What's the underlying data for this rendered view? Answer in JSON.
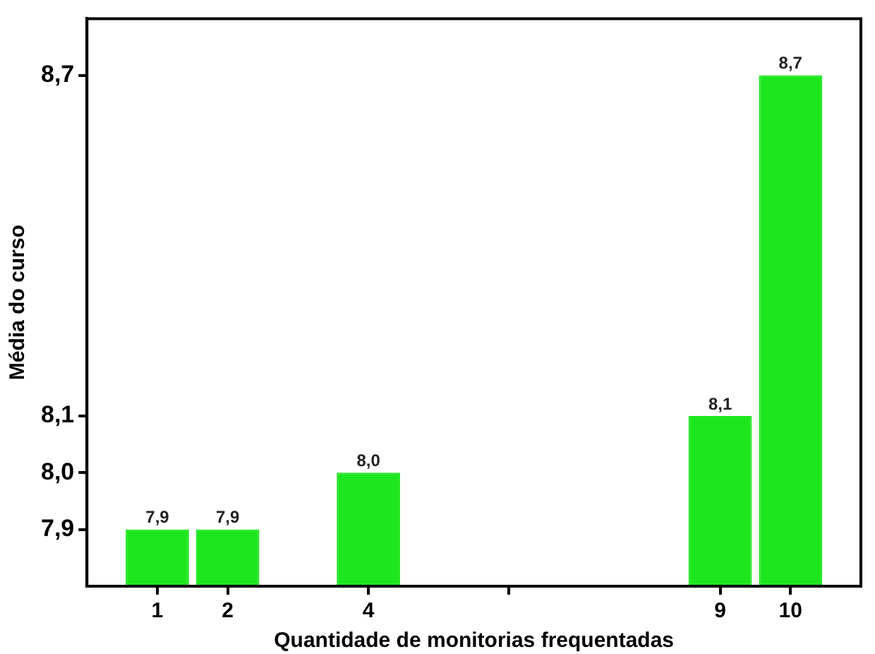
{
  "chart_data": {
    "type": "bar",
    "xlabel": "Quantidade de monitorias frequentadas",
    "ylabel": "Média do curso",
    "x": [
      1,
      2,
      4,
      9,
      10
    ],
    "values": [
      7.9,
      7.9,
      8.0,
      8.1,
      8.7
    ],
    "value_labels": [
      "7,9",
      "7,9",
      "8,0",
      "8,1",
      "8,7"
    ],
    "color": "#1ee61e",
    "xlim": [
      0,
      11
    ],
    "xticks": [
      1,
      2,
      4,
      {
        "value": 6,
        "label": null
      },
      9,
      10
    ],
    "ylim": [
      7.8,
      8.8
    ],
    "yticks": [
      {
        "value": 7.9,
        "label": "7,9"
      },
      {
        "value": 8.0,
        "label": "8,0"
      },
      {
        "value": 8.1,
        "label": "8,1"
      },
      {
        "value": 8.7,
        "label": "8,7"
      }
    ],
    "grid": false,
    "legend": false
  }
}
